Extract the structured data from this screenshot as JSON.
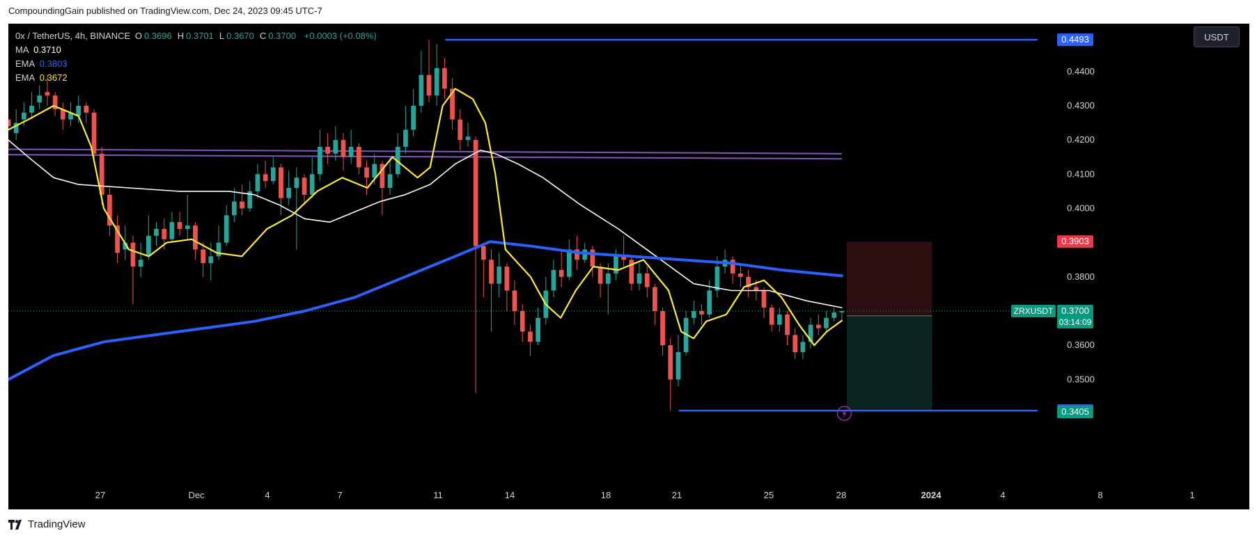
{
  "publisher": "CompoundingGain published on TradingView.com, Dec 24, 2023 09:45 UTC-7",
  "legend": {
    "symbol": "0x / TetherUS, 4h, BINANCE",
    "ohlc": [
      {
        "k": "O",
        "v": "0.3696"
      },
      {
        "k": "H",
        "v": "0.3701"
      },
      {
        "k": "L",
        "v": "0.3670"
      },
      {
        "k": "C",
        "v": "0.3700"
      }
    ],
    "change": "+0.0003 (+0.08%)",
    "ma_label": "MA",
    "ma_value": "0.3710",
    "ema1_label": "EMA",
    "ema1_value": "0.3803",
    "ema2_label": "EMA",
    "ema2_value": "0.3672"
  },
  "currency_button": "USDT",
  "footer_brand": "TradingView",
  "colors": {
    "background": "#000000",
    "up": "#26a69a",
    "down": "#ef5350",
    "ema_slow": "#2962ff",
    "ema_fast": "#ffeb3b",
    "ma": "#ffffff",
    "channel": "#7e57c2",
    "level": "#2962ff",
    "stop_zone": "#2a0e10",
    "target_zone": "#0b2420"
  },
  "chart_data": {
    "type": "candlestick",
    "title": "0x / TetherUS, 4h, BINANCE",
    "price_axis": {
      "ticks": [
        "0.4400",
        "0.4300",
        "0.4200",
        "0.4100",
        "0.4000",
        "0.3800",
        "0.3600",
        "0.3500"
      ],
      "range": [
        0.334,
        0.454
      ]
    },
    "time_axis": {
      "ticks": [
        "27",
        "Dec",
        "4",
        "7",
        "11",
        "14",
        "18",
        "21",
        "25",
        "28",
        "2024",
        "4",
        "8",
        "1"
      ]
    },
    "price_labels": [
      {
        "text": "0.4493",
        "value": 0.4493,
        "color": "#2962ff"
      },
      {
        "text": "0.3903",
        "value": 0.3903,
        "color": "#f23645"
      },
      {
        "text": "0.3686",
        "value": 0.3686,
        "color": "#787b86"
      },
      {
        "text": "0.3409",
        "value": 0.3409,
        "color": "#2962ff"
      },
      {
        "text": "0.3405",
        "value": 0.3405,
        "color": "#089981"
      }
    ],
    "last_price": {
      "symbol": "ZRXUSDT",
      "price": "0.3700",
      "countdown": "03:14:09",
      "value": 0.37
    },
    "horizontal_levels": [
      {
        "value": 0.4493,
        "from_day": 8.6,
        "to_day": "end",
        "color": "#2962ff"
      },
      {
        "value": 0.3409,
        "from_day": 17.9,
        "to_day": "end",
        "color": "#2962ff"
      }
    ],
    "channel_lines": [
      {
        "from": [
          -8.8,
          0.4173
        ],
        "to": [
          24.4,
          0.416
        ]
      },
      {
        "from": [
          -8.8,
          0.4157
        ],
        "to": [
          24.4,
          0.4145
        ]
      }
    ],
    "position": {
      "entry": 0.3686,
      "stop": 0.3903,
      "target": 0.3409,
      "from_day": 24.6,
      "to_day": 28.0
    },
    "x_domain_days": [
      -8.8,
      40.3
    ],
    "candles_ohlc": [
      [
        0.426,
        0.424,
        0.42,
        0.418
      ],
      [
        0.422,
        0.425,
        0.429,
        0.42
      ],
      [
        0.426,
        0.428,
        0.431,
        0.424
      ],
      [
        0.428,
        0.43,
        0.434,
        0.426
      ],
      [
        0.431,
        0.433,
        0.436,
        0.429
      ],
      [
        0.434,
        0.433,
        0.439,
        0.43
      ],
      [
        0.433,
        0.429,
        0.434,
        0.427
      ],
      [
        0.429,
        0.426,
        0.431,
        0.423
      ],
      [
        0.426,
        0.428,
        0.431,
        0.424
      ],
      [
        0.427,
        0.43,
        0.433,
        0.425
      ],
      [
        0.43,
        0.428,
        0.431,
        0.425
      ],
      [
        0.428,
        0.416,
        0.429,
        0.414
      ],
      [
        0.416,
        0.404,
        0.418,
        0.401
      ],
      [
        0.404,
        0.395,
        0.406,
        0.392
      ],
      [
        0.395,
        0.387,
        0.398,
        0.384
      ],
      [
        0.388,
        0.39,
        0.395,
        0.385
      ],
      [
        0.39,
        0.383,
        0.392,
        0.372
      ],
      [
        0.383,
        0.385,
        0.39,
        0.38
      ],
      [
        0.386,
        0.392,
        0.398,
        0.385
      ],
      [
        0.392,
        0.394,
        0.396,
        0.389
      ],
      [
        0.394,
        0.391,
        0.397,
        0.388
      ],
      [
        0.391,
        0.396,
        0.399,
        0.39
      ],
      [
        0.396,
        0.394,
        0.399,
        0.392
      ],
      [
        0.394,
        0.395,
        0.404,
        0.391
      ],
      [
        0.395,
        0.388,
        0.396,
        0.385
      ],
      [
        0.388,
        0.384,
        0.39,
        0.38
      ],
      [
        0.384,
        0.386,
        0.39,
        0.379
      ],
      [
        0.386,
        0.39,
        0.395,
        0.385
      ],
      [
        0.39,
        0.398,
        0.401,
        0.389
      ],
      [
        0.398,
        0.402,
        0.406,
        0.396
      ],
      [
        0.402,
        0.4,
        0.407,
        0.398
      ],
      [
        0.4,
        0.405,
        0.408,
        0.399
      ],
      [
        0.405,
        0.41,
        0.413,
        0.403
      ],
      [
        0.41,
        0.408,
        0.414,
        0.406
      ],
      [
        0.408,
        0.412,
        0.415,
        0.407
      ],
      [
        0.412,
        0.403,
        0.413,
        0.398
      ],
      [
        0.403,
        0.406,
        0.411,
        0.401
      ],
      [
        0.406,
        0.409,
        0.412,
        0.388
      ],
      [
        0.409,
        0.404,
        0.41,
        0.401
      ],
      [
        0.404,
        0.41,
        0.415,
        0.403
      ],
      [
        0.41,
        0.418,
        0.423,
        0.408
      ],
      [
        0.418,
        0.416,
        0.422,
        0.413
      ],
      [
        0.416,
        0.42,
        0.424,
        0.414
      ],
      [
        0.42,
        0.415,
        0.422,
        0.411
      ],
      [
        0.415,
        0.418,
        0.423,
        0.413
      ],
      [
        0.418,
        0.412,
        0.419,
        0.41
      ],
      [
        0.412,
        0.409,
        0.414,
        0.404
      ],
      [
        0.409,
        0.413,
        0.416,
        0.407
      ],
      [
        0.413,
        0.406,
        0.414,
        0.398
      ],
      [
        0.406,
        0.41,
        0.415,
        0.404
      ],
      [
        0.41,
        0.418,
        0.422,
        0.409
      ],
      [
        0.418,
        0.423,
        0.43,
        0.416
      ],
      [
        0.423,
        0.43,
        0.435,
        0.421
      ],
      [
        0.43,
        0.439,
        0.446,
        0.428
      ],
      [
        0.439,
        0.433,
        0.4493,
        0.431
      ],
      [
        0.433,
        0.441,
        0.448,
        0.43
      ],
      [
        0.441,
        0.435,
        0.444,
        0.432
      ],
      [
        0.435,
        0.426,
        0.438,
        0.423
      ],
      [
        0.426,
        0.42,
        0.429,
        0.417
      ],
      [
        0.42,
        0.421,
        0.425,
        0.418
      ],
      [
        0.42,
        0.389,
        0.421,
        0.346
      ],
      [
        0.389,
        0.385,
        0.39,
        0.374
      ],
      [
        0.385,
        0.378,
        0.388,
        0.364
      ],
      [
        0.378,
        0.383,
        0.387,
        0.374
      ],
      [
        0.383,
        0.376,
        0.384,
        0.37
      ],
      [
        0.376,
        0.37,
        0.379,
        0.366
      ],
      [
        0.37,
        0.364,
        0.372,
        0.361
      ],
      [
        0.364,
        0.361,
        0.366,
        0.357
      ],
      [
        0.361,
        0.368,
        0.371,
        0.36
      ],
      [
        0.368,
        0.376,
        0.38,
        0.366
      ],
      [
        0.376,
        0.382,
        0.385,
        0.374
      ],
      [
        0.382,
        0.38,
        0.388,
        0.377
      ],
      [
        0.38,
        0.388,
        0.391,
        0.379
      ],
      [
        0.388,
        0.385,
        0.392,
        0.382
      ],
      [
        0.385,
        0.388,
        0.39,
        0.384
      ],
      [
        0.388,
        0.383,
        0.389,
        0.38
      ],
      [
        0.383,
        0.378,
        0.384,
        0.374
      ],
      [
        0.378,
        0.381,
        0.384,
        0.369
      ],
      [
        0.381,
        0.386,
        0.388,
        0.379
      ],
      [
        0.386,
        0.385,
        0.392,
        0.383
      ],
      [
        0.385,
        0.378,
        0.386,
        0.376
      ],
      [
        0.378,
        0.381,
        0.384,
        0.376
      ],
      [
        0.381,
        0.377,
        0.383,
        0.374
      ],
      [
        0.377,
        0.37,
        0.378,
        0.366
      ],
      [
        0.37,
        0.36,
        0.371,
        0.357
      ],
      [
        0.36,
        0.35,
        0.362,
        0.3409
      ],
      [
        0.35,
        0.358,
        0.363,
        0.348
      ],
      [
        0.358,
        0.368,
        0.37,
        0.357
      ],
      [
        0.368,
        0.37,
        0.373,
        0.366
      ],
      [
        0.37,
        0.369,
        0.372,
        0.366
      ],
      [
        0.369,
        0.376,
        0.379,
        0.368
      ],
      [
        0.376,
        0.383,
        0.386,
        0.374
      ],
      [
        0.383,
        0.385,
        0.388,
        0.381
      ],
      [
        0.385,
        0.381,
        0.386,
        0.378
      ],
      [
        0.381,
        0.38,
        0.384,
        0.377
      ],
      [
        0.38,
        0.377,
        0.382,
        0.374
      ],
      [
        0.377,
        0.376,
        0.379,
        0.373
      ],
      [
        0.376,
        0.371,
        0.377,
        0.368
      ],
      [
        0.371,
        0.366,
        0.372,
        0.364
      ],
      [
        0.366,
        0.369,
        0.371,
        0.364
      ],
      [
        0.369,
        0.363,
        0.37,
        0.36
      ],
      [
        0.363,
        0.358,
        0.365,
        0.356
      ],
      [
        0.358,
        0.361,
        0.363,
        0.356
      ],
      [
        0.361,
        0.366,
        0.368,
        0.359
      ],
      [
        0.366,
        0.365,
        0.369,
        0.363
      ],
      [
        0.365,
        0.368,
        0.37,
        0.364
      ],
      [
        0.368,
        0.3696,
        0.371,
        0.367
      ],
      [
        0.3696,
        0.37,
        0.3701,
        0.367
      ]
    ],
    "ema_slow": {
      "name": "EMA",
      "value": 0.3803,
      "points": [
        [
          -8.8,
          0.35
        ],
        [
          -7,
          0.357
        ],
        [
          -5,
          0.361
        ],
        [
          -3,
          0.363
        ],
        [
          -1,
          0.365
        ],
        [
          1,
          0.367
        ],
        [
          3,
          0.37
        ],
        [
          5,
          0.374
        ],
        [
          7,
          0.38
        ],
        [
          9,
          0.386
        ],
        [
          10.4,
          0.3903
        ],
        [
          12,
          0.389
        ],
        [
          14,
          0.387
        ],
        [
          16,
          0.386
        ],
        [
          18,
          0.385
        ],
        [
          20,
          0.384
        ],
        [
          22,
          0.382
        ],
        [
          24.4,
          0.3803
        ]
      ]
    },
    "ema_fast": {
      "name": "EMA",
      "value": 0.3672,
      "points": [
        [
          -8.8,
          0.423
        ],
        [
          -8,
          0.426
        ],
        [
          -7,
          0.43
        ],
        [
          -6,
          0.427
        ],
        [
          -5.5,
          0.418
        ],
        [
          -5,
          0.4
        ],
        [
          -4,
          0.388
        ],
        [
          -3.2,
          0.386
        ],
        [
          -2.5,
          0.39
        ],
        [
          -1.5,
          0.391
        ],
        [
          -0.5,
          0.387
        ],
        [
          0.5,
          0.386
        ],
        [
          1.5,
          0.394
        ],
        [
          2.5,
          0.398
        ],
        [
          3.5,
          0.405
        ],
        [
          4.5,
          0.409
        ],
        [
          5.5,
          0.406
        ],
        [
          6.5,
          0.415
        ],
        [
          7.5,
          0.409
        ],
        [
          8,
          0.412
        ],
        [
          8.5,
          0.43
        ],
        [
          9,
          0.435
        ],
        [
          9.7,
          0.432
        ],
        [
          10.2,
          0.425
        ],
        [
          10.6,
          0.41
        ],
        [
          11,
          0.388
        ],
        [
          11.5,
          0.384
        ],
        [
          12,
          0.38
        ],
        [
          12.6,
          0.372
        ],
        [
          13.2,
          0.368
        ],
        [
          13.8,
          0.376
        ],
        [
          14.5,
          0.383
        ],
        [
          15.5,
          0.382
        ],
        [
          16.5,
          0.385
        ],
        [
          17.5,
          0.376
        ],
        [
          18,
          0.364
        ],
        [
          18.5,
          0.362
        ],
        [
          19,
          0.367
        ],
        [
          19.8,
          0.369
        ],
        [
          20.5,
          0.377
        ],
        [
          21.3,
          0.379
        ],
        [
          22,
          0.374
        ],
        [
          22.7,
          0.366
        ],
        [
          23.3,
          0.36
        ],
        [
          23.8,
          0.364
        ],
        [
          24.4,
          0.3672
        ]
      ]
    },
    "ma": {
      "name": "MA",
      "value": 0.371,
      "points": [
        [
          -8.8,
          0.42
        ],
        [
          -8,
          0.415
        ],
        [
          -7,
          0.409
        ],
        [
          -6,
          0.407
        ],
        [
          -4,
          0.406
        ],
        [
          -2,
          0.405
        ],
        [
          0,
          0.405
        ],
        [
          1,
          0.404
        ],
        [
          2,
          0.401
        ],
        [
          3,
          0.397
        ],
        [
          4,
          0.396
        ],
        [
          5,
          0.399
        ],
        [
          6,
          0.402
        ],
        [
          7,
          0.404
        ],
        [
          8,
          0.407
        ],
        [
          9,
          0.413
        ],
        [
          10,
          0.417
        ],
        [
          10.6,
          0.416
        ],
        [
          11.5,
          0.413
        ],
        [
          12.5,
          0.409
        ],
        [
          14,
          0.401
        ],
        [
          15.5,
          0.394
        ],
        [
          17,
          0.386
        ],
        [
          18.5,
          0.378
        ],
        [
          20,
          0.376
        ],
        [
          21.5,
          0.376
        ],
        [
          23,
          0.373
        ],
        [
          24.4,
          0.371
        ]
      ]
    }
  }
}
